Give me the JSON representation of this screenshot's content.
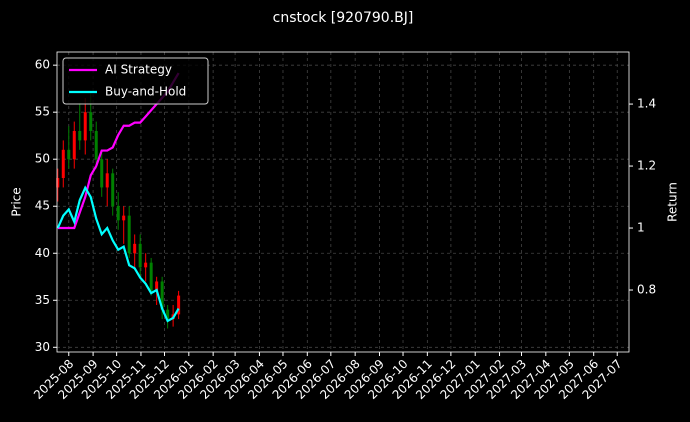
{
  "chart_data": {
    "type": "candlestick",
    "title": "cnstock [920790.BJ]",
    "y_label": "Price",
    "y2_label": "Return",
    "x": [
      "2025-07-18",
      "2025-07-25",
      "2025-08-01",
      "2025-08-08",
      "2025-08-15",
      "2025-08-22",
      "2025-08-29",
      "2025-09-05",
      "2025-09-12",
      "2025-09-19",
      "2025-09-26",
      "2025-10-03",
      "2025-10-10",
      "2025-10-17",
      "2025-10-24",
      "2025-10-31",
      "2025-11-07",
      "2025-11-14",
      "2025-11-21",
      "2025-11-28",
      "2025-12-05",
      "2025-12-12",
      "2025-12-19"
    ],
    "open": [
      47,
      48,
      51,
      50,
      53,
      52,
      55,
      53,
      50,
      47,
      48.5,
      45,
      43.5,
      44,
      40,
      41,
      38.5,
      39,
      36,
      37,
      34,
      33,
      33.5
    ],
    "high": [
      49,
      52,
      53.5,
      54,
      56,
      56.5,
      57,
      54,
      51,
      50,
      49,
      46.5,
      45,
      45,
      42,
      42,
      40,
      39.5,
      37.5,
      37.5,
      34.5,
      34.5,
      36
    ],
    "low": [
      45.5,
      47,
      49,
      49,
      51,
      50.5,
      52,
      49,
      46,
      45,
      44,
      42.5,
      41,
      39.5,
      38.5,
      37.5,
      37,
      35.5,
      34.5,
      33,
      32,
      32.2,
      33
    ],
    "close": [
      48,
      51,
      50,
      53,
      52,
      55,
      53,
      50,
      47,
      48.5,
      45,
      43.5,
      44,
      40,
      41,
      38.5,
      39,
      36,
      37,
      34,
      33,
      33.5,
      35.5
    ],
    "up_color": "#ff0000",
    "down_color": "#008000",
    "series": [
      {
        "name": "AI Strategy",
        "color": "#ff00ff",
        "axis": "y2",
        "values": [
          1.0,
          1.0,
          1.0,
          1.0,
          1.05,
          1.1,
          1.17,
          1.2,
          1.25,
          1.25,
          1.26,
          1.3,
          1.33,
          1.33,
          1.34,
          1.34,
          1.36,
          1.38,
          1.4,
          1.42,
          1.44,
          1.47,
          1.5
        ]
      },
      {
        "name": "Buy-and-Hold",
        "color": "#00ffff",
        "axis": "y2",
        "values": [
          1.0,
          1.04,
          1.06,
          1.02,
          1.09,
          1.13,
          1.1,
          1.03,
          0.98,
          1.0,
          0.96,
          0.93,
          0.94,
          0.88,
          0.87,
          0.84,
          0.82,
          0.79,
          0.8,
          0.74,
          0.7,
          0.71,
          0.74
        ]
      }
    ],
    "xlim": [
      "2025-07-17",
      "2027-07-16"
    ],
    "xticks": [
      "2025-08",
      "2025-09",
      "2025-10",
      "2025-11",
      "2025-12",
      "2026-01",
      "2026-02",
      "2026-03",
      "2026-04",
      "2026-05",
      "2026-06",
      "2026-07",
      "2026-08",
      "2026-09",
      "2026-10",
      "2026-11",
      "2026-12",
      "2027-01",
      "2027-02",
      "2027-03",
      "2027-04",
      "2027-05",
      "2027-06",
      "2027-07"
    ],
    "ylim": [
      29.5,
      61.4
    ],
    "yticks": [
      30,
      35,
      40,
      45,
      50,
      55,
      60
    ],
    "y2lim": [
      0.6,
      1.568
    ],
    "y2ticks": [
      0.8,
      1.0,
      1.2,
      1.4
    ],
    "grid": true,
    "legend": "upper left"
  }
}
